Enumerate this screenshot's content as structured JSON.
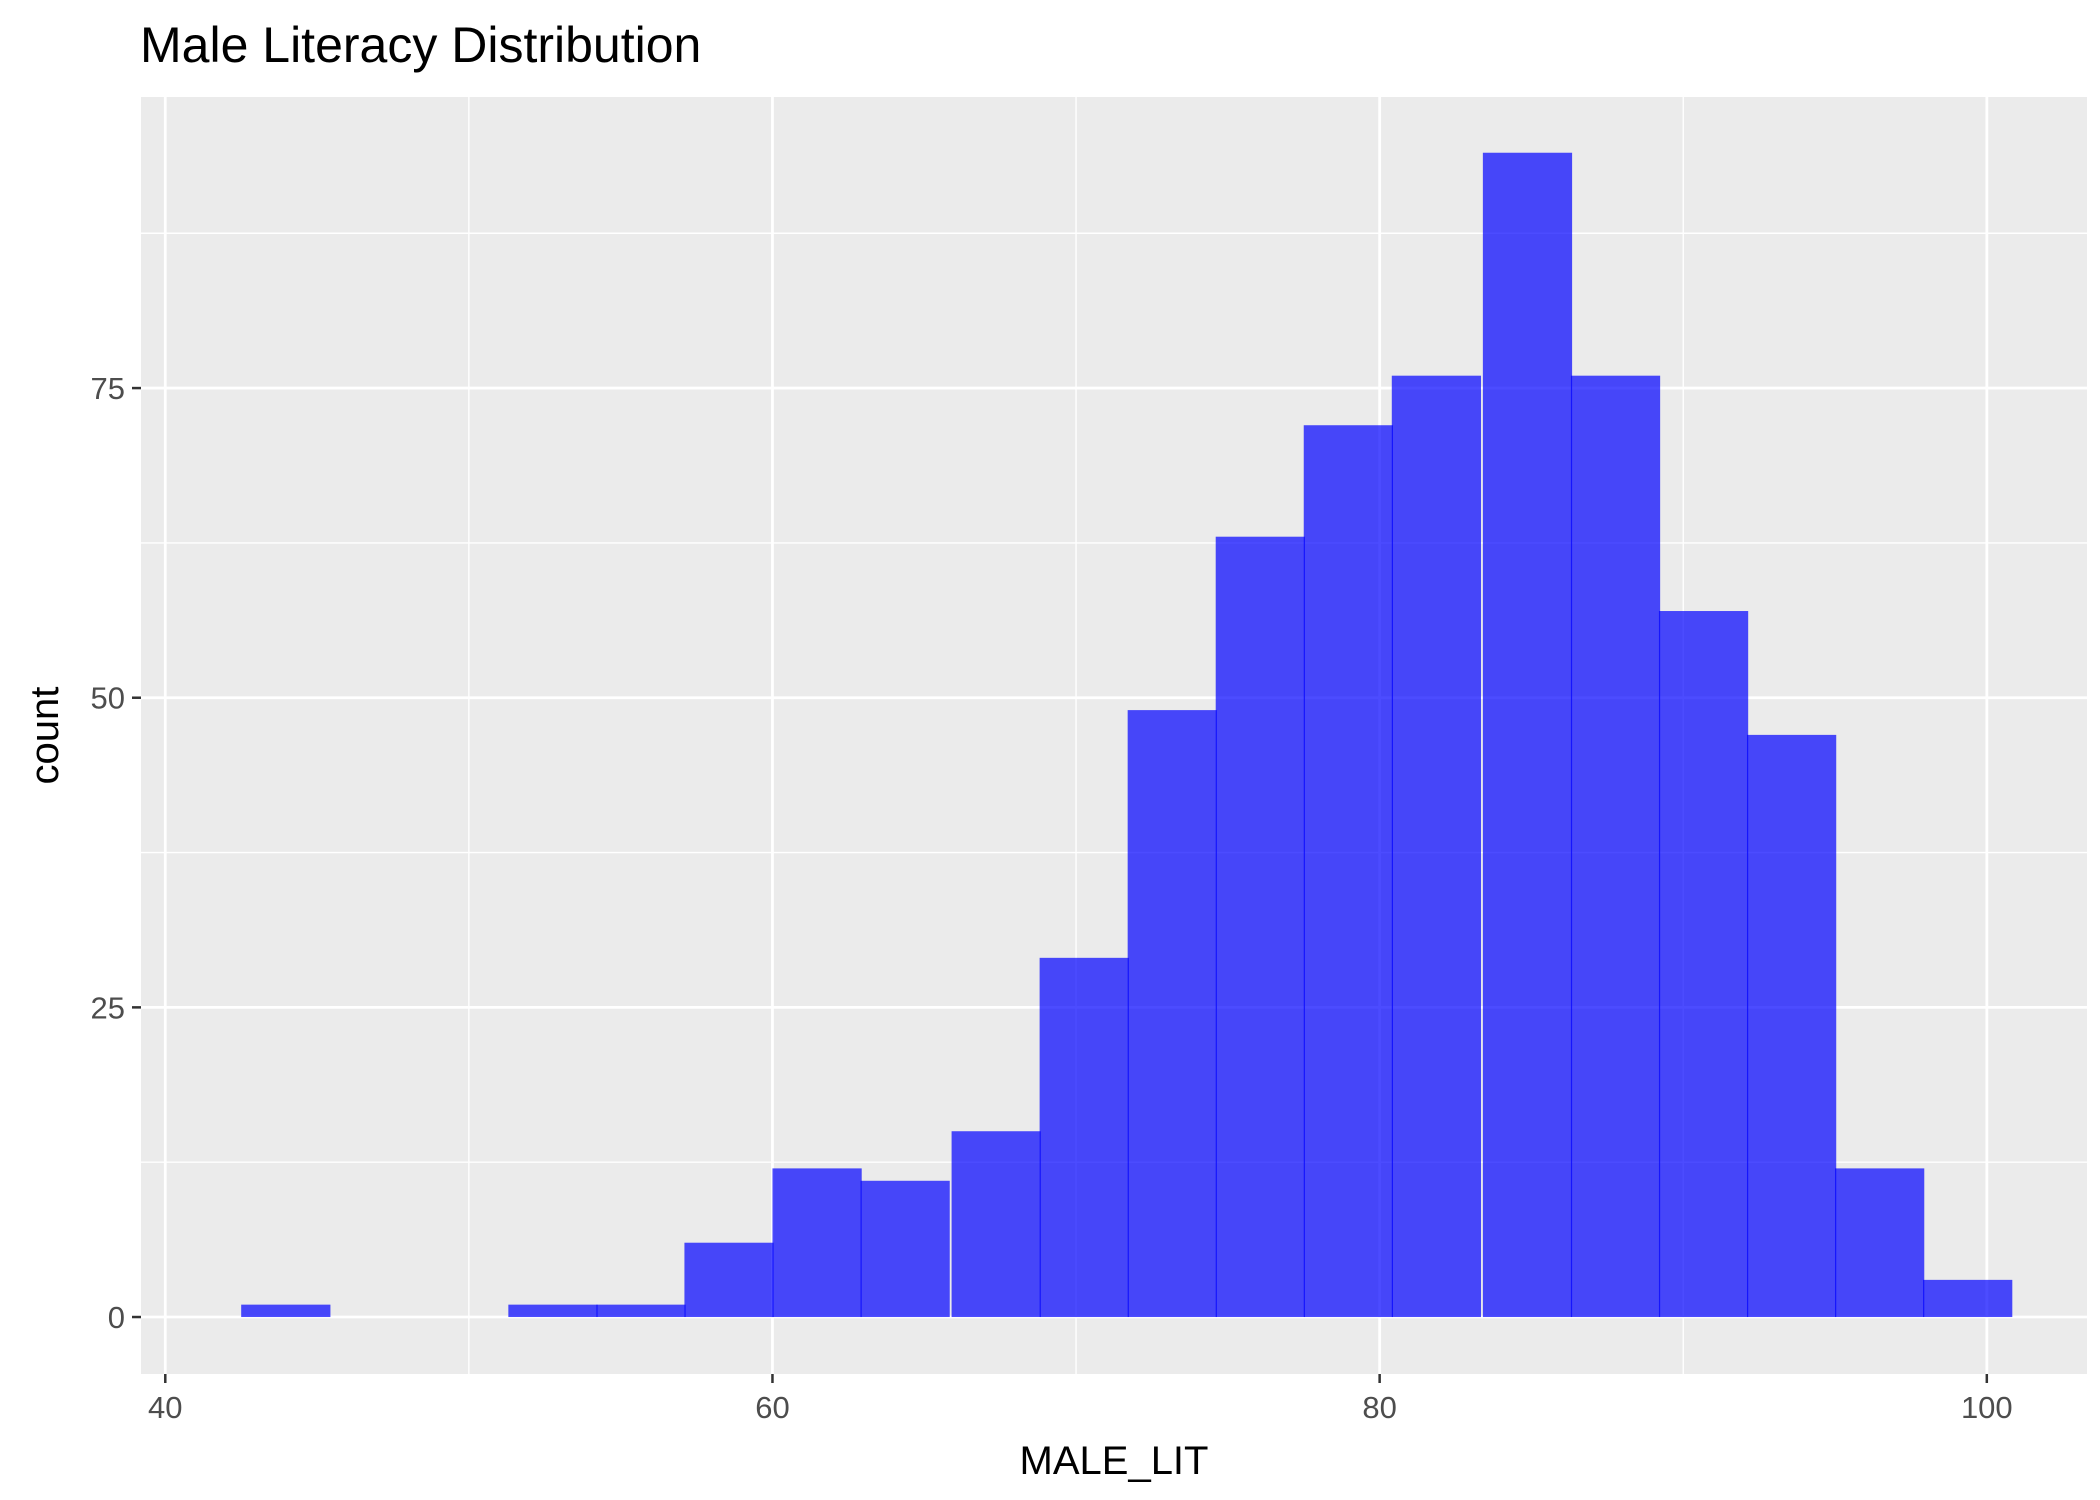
{
  "chart_data": {
    "type": "bar",
    "title": "Male Literacy Distribution",
    "xlabel": "MALE_LIT",
    "ylabel": "count",
    "xlim": [
      39.2,
      103.3
    ],
    "ylim": [
      -4.6,
      98.5
    ],
    "xticks": [
      {
        "value": 40,
        "label": "40"
      },
      {
        "value": 60,
        "label": "60"
      },
      {
        "value": 80,
        "label": "80"
      },
      {
        "value": 100,
        "label": "100"
      }
    ],
    "yticks": [
      {
        "value": 0,
        "label": "0"
      },
      {
        "value": 25,
        "label": "25"
      },
      {
        "value": 50,
        "label": "50"
      },
      {
        "value": 75,
        "label": "75"
      }
    ],
    "bin_width": 2.92,
    "bins": [
      {
        "start": 42.5,
        "count": 1
      },
      {
        "start": 45.4,
        "count": 0
      },
      {
        "start": 48.4,
        "count": 0
      },
      {
        "start": 51.3,
        "count": 1
      },
      {
        "start": 54.2,
        "count": 1
      },
      {
        "start": 57.1,
        "count": 6
      },
      {
        "start": 60.0,
        "count": 12
      },
      {
        "start": 62.9,
        "count": 11
      },
      {
        "start": 65.9,
        "count": 15
      },
      {
        "start": 68.8,
        "count": 29
      },
      {
        "start": 71.7,
        "count": 49
      },
      {
        "start": 74.6,
        "count": 63
      },
      {
        "start": 77.5,
        "count": 72
      },
      {
        "start": 80.4,
        "count": 76
      },
      {
        "start": 83.4,
        "count": 94
      },
      {
        "start": 86.3,
        "count": 76
      },
      {
        "start": 89.2,
        "count": 57
      },
      {
        "start": 92.1,
        "count": 47
      },
      {
        "start": 95.0,
        "count": 12
      },
      {
        "start": 97.9,
        "count": 3
      }
    ],
    "colors": {
      "bar": "#0000ff",
      "panel_background": "#ebebeb",
      "grid": "#ffffff"
    },
    "bar_alpha": 0.7,
    "grid": true,
    "legend": "none"
  }
}
